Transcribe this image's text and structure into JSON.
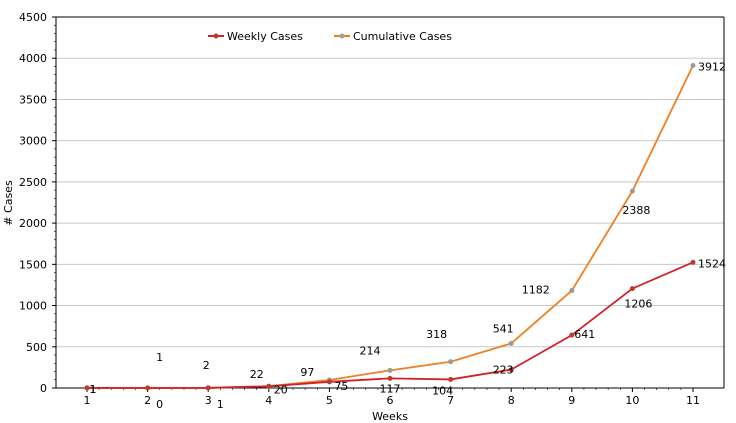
{
  "chart_data": {
    "type": "line",
    "title": "",
    "xlabel": "Weeks",
    "ylabel": "# Cases",
    "categories": [
      "1",
      "2",
      "3",
      "4",
      "5",
      "6",
      "7",
      "8",
      "9",
      "10",
      "11"
    ],
    "ylim": [
      0,
      4500
    ],
    "yticks": [
      "0",
      "500",
      "1000",
      "1500",
      "2000",
      "2500",
      "3000",
      "3500",
      "4000",
      "4500"
    ],
    "grid": true,
    "legend": "top",
    "series": [
      {
        "name": "Weekly Cases",
        "color": "#d0202e",
        "values": [
          1,
          0,
          1,
          20,
          75,
          117,
          104,
          223,
          641,
          1206,
          1524
        ],
        "labels": [
          "1",
          "0",
          "1",
          "20",
          "75",
          "117",
          "104",
          "223",
          "641",
          "1206",
          "1524"
        ]
      },
      {
        "name": "Cumulative Cases",
        "color": "#f07f22",
        "values": [
          1,
          1,
          2,
          22,
          97,
          214,
          318,
          541,
          1182,
          2388,
          3912
        ],
        "labels": [
          "1",
          "1",
          "2",
          "22",
          "97",
          "214",
          "318",
          "541",
          "1182",
          "2388",
          "3912"
        ]
      }
    ]
  }
}
